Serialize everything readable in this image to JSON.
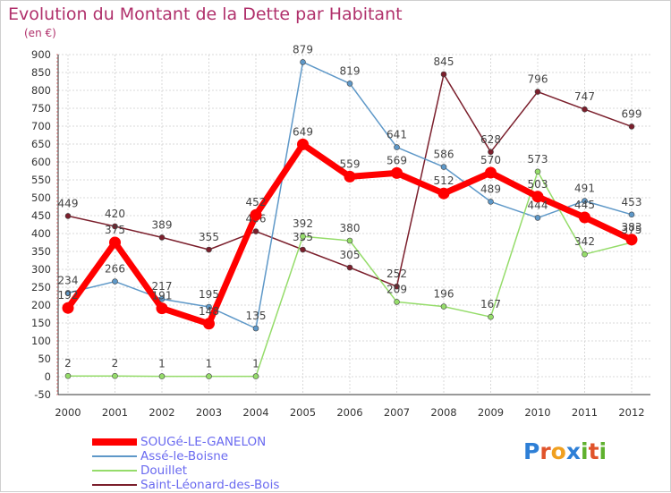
{
  "header": {
    "title": "Evolution du Montant de la Dette par Habitant",
    "unit": "(en €)"
  },
  "logo": {
    "text": "Proxiti",
    "letters": [
      "P",
      "r",
      "o",
      "x",
      "i",
      "t",
      "i"
    ],
    "colors": [
      "#2e7fd6",
      "#e0542b",
      "#f0a020",
      "#2e7fd6",
      "#5fb12e",
      "#e0542b",
      "#5fb12e"
    ]
  },
  "chart_data": {
    "type": "line",
    "title": "Evolution du Montant de la Dette par Habitant",
    "ylabel": "(en €)",
    "xlabel": "",
    "ylim": [
      -50,
      900
    ],
    "yticks": [
      -50,
      0,
      50,
      100,
      150,
      200,
      250,
      300,
      350,
      400,
      450,
      500,
      550,
      600,
      650,
      700,
      750,
      800,
      850,
      900
    ],
    "categories": [
      "2000",
      "2001",
      "2002",
      "2003",
      "2004",
      "2005",
      "2006",
      "2007",
      "2008",
      "2009",
      "2010",
      "2011",
      "2012"
    ],
    "series": [
      {
        "name": "Saint-Léonard-des-Bois",
        "color": "#7b1f2c",
        "width": 1.5,
        "values": [
          449,
          420,
          389,
          355,
          406,
          355,
          305,
          252,
          845,
          628,
          796,
          747,
          699
        ],
        "labels": [
          "449",
          "420",
          "389",
          "355",
          "406",
          "355",
          "305",
          "252",
          "845",
          "628",
          "796",
          "747",
          "699"
        ]
      },
      {
        "name": "Assé-le-Boisne",
        "color": "#5e98c8",
        "width": 1.5,
        "values": [
          234,
          266,
          217,
          195,
          135,
          879,
          819,
          641,
          586,
          489,
          444,
          491,
          453
        ],
        "labels": [
          "234",
          "266",
          "217",
          "195",
          "135",
          "879",
          "819",
          "641",
          "586",
          "489",
          "444",
          "491",
          "453"
        ]
      },
      {
        "name": "Douillet",
        "color": "#95dc6a",
        "width": 1.5,
        "values": [
          2,
          2,
          1,
          1,
          1,
          392,
          380,
          209,
          196,
          167,
          573,
          342,
          375
        ],
        "labels": [
          "2",
          "2",
          "1",
          "1",
          "1",
          "392",
          "380",
          "209",
          "196",
          "167",
          "573",
          "342",
          "375"
        ]
      },
      {
        "name": "SOUGé-LE-GANELON",
        "color": "#ff0000",
        "width": 7,
        "values": [
          192,
          375,
          191,
          148,
          452,
          649,
          559,
          569,
          512,
          570,
          503,
          445,
          383
        ],
        "labels": [
          "192",
          "375",
          "191",
          "148",
          "452",
          "649",
          "559",
          "569",
          "512",
          "570",
          "503",
          "445",
          "383"
        ]
      }
    ],
    "legend": [
      "SOUGé-LE-GANELON",
      "Assé-le-Boisne",
      "Douillet",
      "Saint-Léonard-des-Bois"
    ],
    "legend_position": "bottom-left",
    "grid": true
  }
}
